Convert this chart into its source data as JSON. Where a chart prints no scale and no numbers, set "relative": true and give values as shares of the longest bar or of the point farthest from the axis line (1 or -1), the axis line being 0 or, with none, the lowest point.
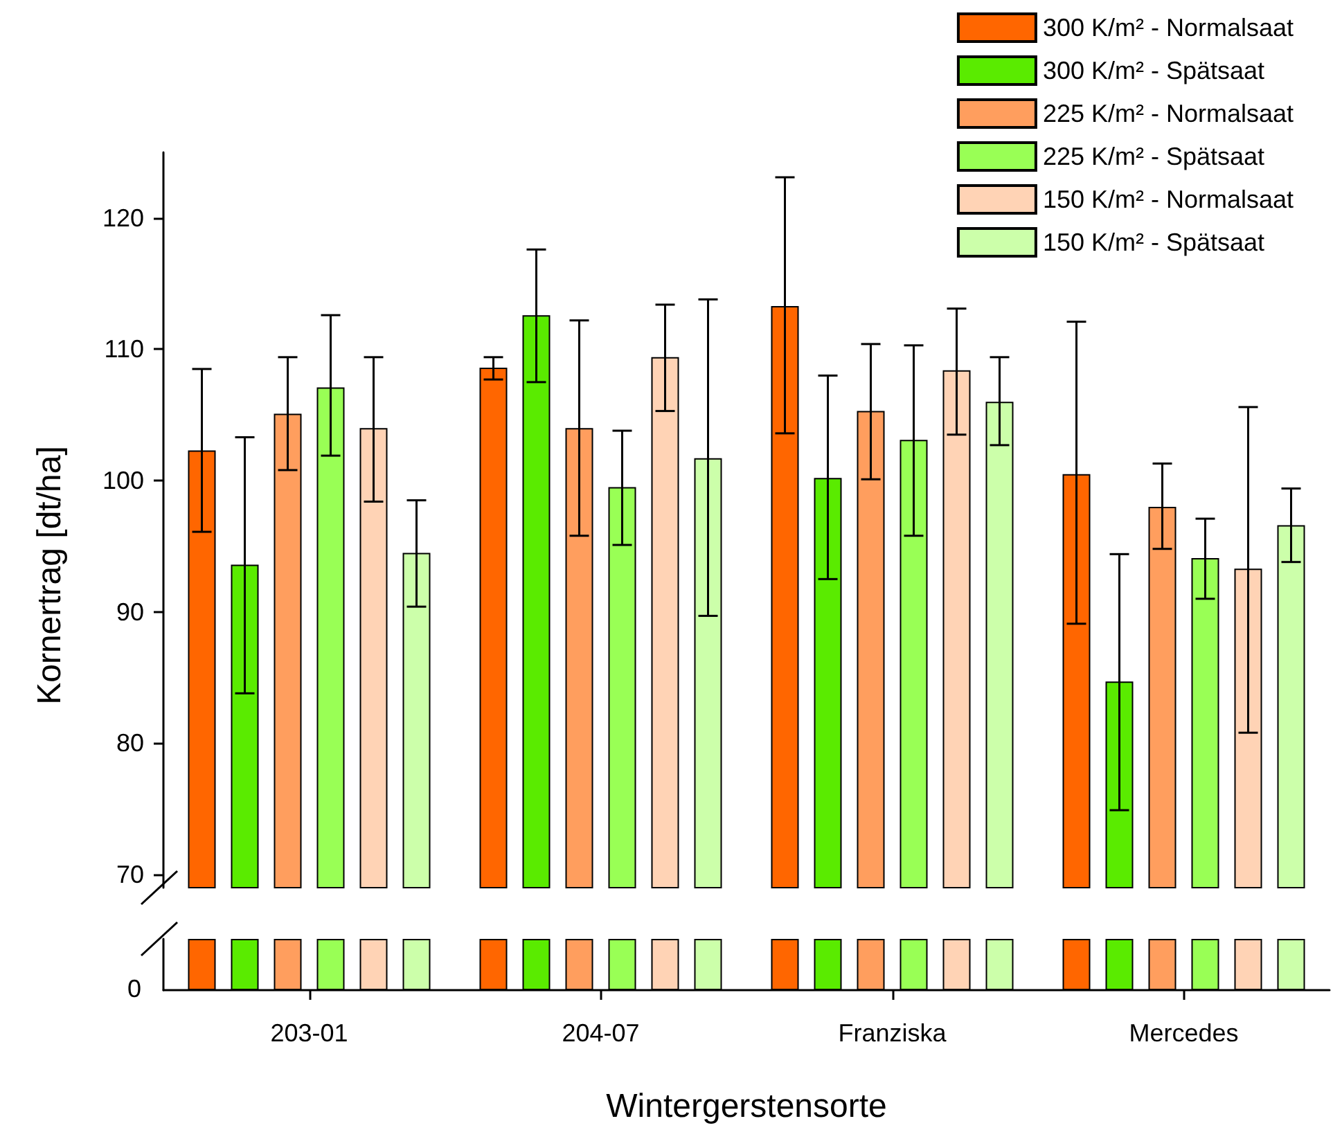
{
  "chart_data": [
    {
      "type": "bar",
      "xlabel": "Wintergerstensorte",
      "ylabel": "Kornertrag [dt/ha]",
      "categories": [
        "203-01",
        "204-07",
        "Franziska",
        "Mercedes"
      ],
      "series": [
        {
          "name": "300 K/m² - Normalsaat",
          "color": "#ff6600",
          "values": [
            102.3,
            108.6,
            113.3,
            100.5
          ],
          "errors": [
            [
              96.1,
              108.5
            ],
            [
              107.7,
              109.4
            ],
            [
              103.6,
              123.1
            ],
            [
              89.1,
              112.1
            ]
          ]
        },
        {
          "name": "300 K/m² - Spätsaat",
          "color": "#5aeb00",
          "values": [
            93.6,
            112.6,
            100.2,
            84.7
          ],
          "errors": [
            [
              83.8,
              103.3
            ],
            [
              107.5,
              117.6
            ],
            [
              92.5,
              108.0
            ],
            [
              74.9,
              94.4
            ]
          ]
        },
        {
          "name": "225 K/m² - Normalsaat",
          "color": "#ff9e5e",
          "values": [
            105.1,
            104.0,
            105.3,
            98.0
          ],
          "errors": [
            [
              100.8,
              109.4
            ],
            [
              95.8,
              112.2
            ],
            [
              100.1,
              110.4
            ],
            [
              94.8,
              101.3
            ]
          ]
        },
        {
          "name": "225 K/m² - Spätsaat",
          "color": "#99ff55",
          "values": [
            107.1,
            99.5,
            103.1,
            94.1
          ],
          "errors": [
            [
              101.9,
              112.6
            ],
            [
              95.1,
              103.8
            ],
            [
              95.8,
              110.3
            ],
            [
              91.0,
              97.1
            ]
          ]
        },
        {
          "name": "150 K/m² - Normalsaat",
          "color": "#ffd3b5",
          "values": [
            104.0,
            109.4,
            108.4,
            93.3
          ],
          "errors": [
            [
              98.4,
              109.4
            ],
            [
              105.3,
              113.4
            ],
            [
              103.5,
              113.1
            ],
            [
              80.8,
              105.6
            ]
          ]
        },
        {
          "name": "150 K/m² - Spätsaat",
          "color": "#ccffaa",
          "values": [
            94.5,
            101.7,
            106.0,
            96.6
          ],
          "errors": [
            [
              90.4,
              98.5
            ],
            [
              89.7,
              113.8
            ],
            [
              102.7,
              109.4
            ],
            [
              93.8,
              99.4
            ]
          ]
        }
      ],
      "ylim": [
        69,
        125
      ],
      "yticks": [
        70,
        80,
        90,
        100,
        110,
        120
      ],
      "grid": false,
      "legend": "top right"
    },
    {
      "type": "bar",
      "categories": [
        null,
        null,
        null,
        null
      ],
      "series": [
        {
          "color": "#ff6600",
          "values": [
            1,
            1,
            1,
            1
          ]
        },
        {
          "color": "#5aeb00",
          "values": [
            1,
            1,
            1,
            1
          ]
        },
        {
          "color": "#ff9e5e",
          "values": [
            1,
            1,
            1,
            1
          ]
        },
        {
          "color": "#99ff55",
          "values": [
            1,
            1,
            1,
            1
          ]
        },
        {
          "color": "#ffd3b5",
          "values": [
            1,
            1,
            1,
            1
          ]
        },
        {
          "color": "#ccffaa",
          "values": [
            1,
            1,
            1,
            1
          ]
        }
      ],
      "relative": true,
      "grid": false,
      "annotations": [
        "0"
      ]
    }
  ]
}
